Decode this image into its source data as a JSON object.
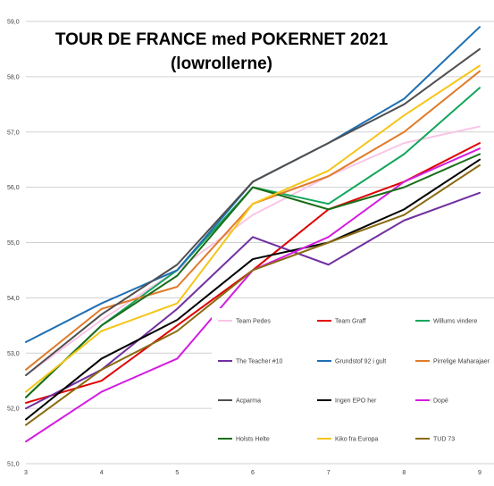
{
  "chart_data": {
    "type": "line",
    "title": "TOUR DE FRANCE med POKERNET 2021",
    "subtitle": "(lowrollerne)",
    "xlabel": "",
    "ylabel": "",
    "x": [
      3,
      4,
      5,
      6,
      7,
      8,
      9
    ],
    "x_tick_labels": [
      "3",
      "4",
      "5",
      "6",
      "7",
      "8",
      "9"
    ],
    "ylim": [
      51.0,
      59.0
    ],
    "y_tick_labels": [
      "51,0",
      "52,0",
      "53,0",
      "54,0",
      "55,0",
      "56,0",
      "57,0",
      "58,0",
      "59,0"
    ],
    "grid": "horizontal",
    "legend_position": "inside, lower right",
    "series": [
      {
        "name": "Team Pedes",
        "color": "#f9c6e6",
        "values": [
          52.6,
          53.6,
          54.5,
          55.5,
          56.2,
          56.8,
          57.1
        ]
      },
      {
        "name": "Team Graff",
        "color": "#e00000",
        "values": [
          52.1,
          52.5,
          53.5,
          54.5,
          55.6,
          56.1,
          56.8
        ]
      },
      {
        "name": "Willums vindere",
        "color": "#13a65a",
        "values": [
          52.2,
          53.5,
          54.5,
          56.0,
          55.7,
          56.6,
          57.8
        ]
      },
      {
        "name": "The Teacher #10",
        "color": "#7030a0",
        "values": [
          52.0,
          52.7,
          53.8,
          55.1,
          54.6,
          55.4,
          55.9
        ]
      },
      {
        "name": "Grundstof 92 i gult",
        "color": "#1f6fb4",
        "values": [
          53.2,
          53.9,
          54.5,
          56.1,
          56.8,
          57.6,
          58.9
        ]
      },
      {
        "name": "Pirrelige Maharajaer",
        "color": "#e07b2a",
        "values": [
          52.7,
          53.8,
          54.2,
          55.7,
          56.2,
          57.0,
          58.1
        ]
      },
      {
        "name": "Acparma",
        "color": "#4f4f4f",
        "values": [
          52.6,
          53.7,
          54.6,
          56.1,
          56.8,
          57.5,
          58.5
        ]
      },
      {
        "name": "Ingen EPO her",
        "color": "#000000",
        "values": [
          51.8,
          52.9,
          53.6,
          54.7,
          55.0,
          55.6,
          56.5
        ]
      },
      {
        "name": "Dopé",
        "color": "#d41de0",
        "values": [
          51.4,
          52.3,
          52.9,
          54.5,
          55.1,
          56.1,
          56.7
        ]
      },
      {
        "name": "Holsts Helte",
        "color": "#1a6e1a",
        "values": [
          52.2,
          53.5,
          54.4,
          56.0,
          55.6,
          56.0,
          56.6
        ]
      },
      {
        "name": "Kiko fra Europa",
        "color": "#f5c518",
        "values": [
          52.3,
          53.4,
          53.9,
          55.7,
          56.3,
          57.3,
          58.2
        ]
      },
      {
        "name": "TUD 73",
        "color": "#8a6a10",
        "values": [
          51.7,
          52.7,
          53.4,
          54.5,
          55.0,
          55.5,
          56.4
        ]
      }
    ]
  }
}
